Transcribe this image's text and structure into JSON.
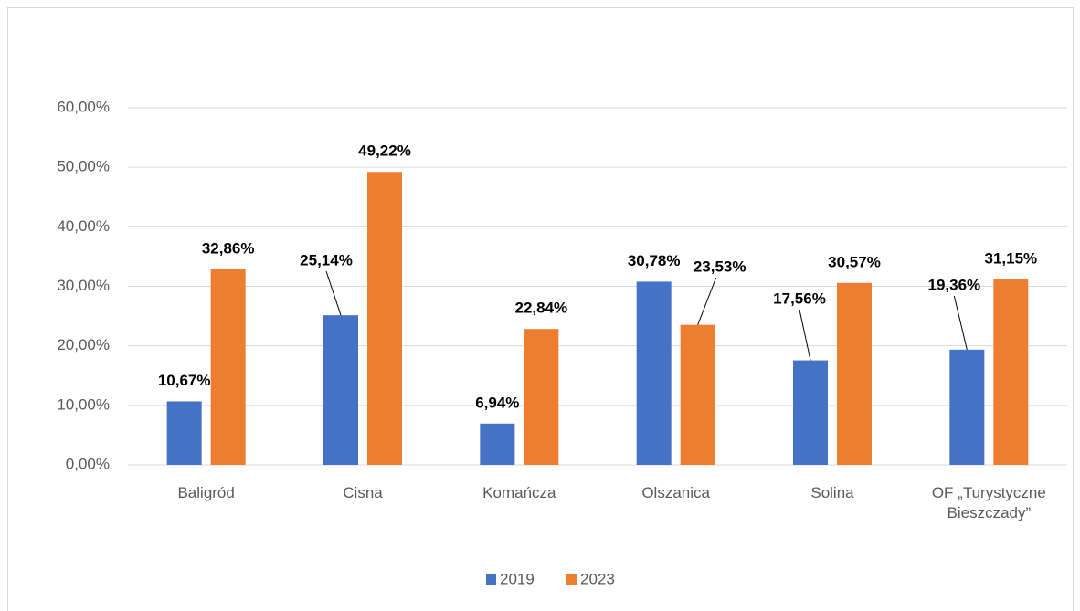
{
  "chart_data": {
    "type": "bar",
    "categories": [
      "Baligród",
      "Cisna",
      "Komańcza",
      "Olszanica",
      "Solina",
      "OF „Turystyczne Bieszczady”"
    ],
    "series": [
      {
        "name": "2019",
        "color": "#4472c4",
        "values": [
          10.67,
          25.14,
          6.94,
          30.78,
          17.56,
          19.36
        ],
        "value_labels": [
          "10,67%",
          "25,14%",
          "6,94%",
          "30,78%",
          "17,56%",
          "19,36%"
        ]
      },
      {
        "name": "2023",
        "color": "#ed7d31",
        "values": [
          32.86,
          49.22,
          22.84,
          23.53,
          30.57,
          31.15
        ],
        "value_labels": [
          "32,86%",
          "49,22%",
          "22,84%",
          "23,53%",
          "30,57%",
          "31,15%"
        ]
      }
    ],
    "ylim": [
      0,
      60
    ],
    "yticks": [
      {
        "value": 0,
        "label": "0,00%"
      },
      {
        "value": 10,
        "label": "10,00%"
      },
      {
        "value": 20,
        "label": "20,00%"
      },
      {
        "value": 30,
        "label": "30,00%"
      },
      {
        "value": 40,
        "label": "40,00%"
      },
      {
        "value": 50,
        "label": "50,00%"
      },
      {
        "value": 60,
        "label": "60,00%"
      }
    ],
    "grid": true,
    "legend": "bottom"
  }
}
